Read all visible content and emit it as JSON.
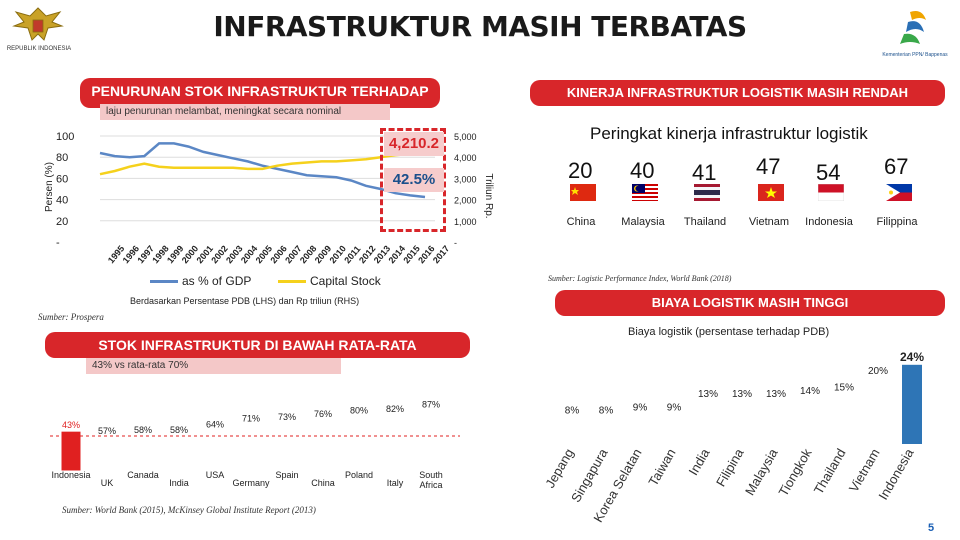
{
  "header": {
    "title": "INFRASTRUKTUR MASIH TERBATAS",
    "left_logo_caption": "REPUBLIK INDONESIA",
    "right_logo_caption": "Kementerian PPN/ Bappenas"
  },
  "left_top": {
    "banner": "PENURUNAN STOK INFRASTRUKTUR TERHADAP PDB",
    "subtitle": "laju penurunan melambat, meningkat secara nominal",
    "callout_value": "4,210.2",
    "callout_pct": "42.5%",
    "lhs_axis_label": "Persen (%)",
    "rhs_axis_label": "Triliun Rp.",
    "lhs_ticks": [
      "100",
      "80",
      "60",
      "40",
      "20",
      "-"
    ],
    "rhs_ticks": [
      "5,000",
      "4,000",
      "3,000",
      "2,000",
      "1,000",
      "-"
    ],
    "legend_gdp": "as % of GDP",
    "legend_capital": "Capital Stock",
    "caption": "Berdasarkan Persentase PDB (LHS) dan Rp triliun (RHS)",
    "source": "Sumber: Prospera"
  },
  "left_bottom": {
    "banner": "STOK INFRASTRUKTUR DI BAWAH RATA-RATA INTERNASIONAL",
    "subtitle": "43% vs rata-rata 70%",
    "source": "Sumber: World Bank (2015), McKinsey Global Institute Report (2013)"
  },
  "right_top": {
    "banner": "KINERJA INFRASTRUKTUR LOGISTIK MASIH RENDAH",
    "chart_title": "Peringkat kinerja infrastruktur logistik",
    "source": "Sumber: Logistic Performance Index, World Bank (2018)"
  },
  "right_bottom": {
    "banner": "BIAYA LOGISTIK MASIH TINGGI",
    "chart_title": "Biaya logistik (persentase terhadap PDB)"
  },
  "page_number": "5",
  "colors": {
    "accent_red": "#d8262a",
    "line_blue": "#5b87c5",
    "line_yellow": "#f5d11c",
    "bar_blue": "#2e75b6",
    "bar_red": "#e02020",
    "bar_gold": "#e8b92f"
  },
  "chart_data": [
    {
      "type": "line",
      "title": "PENURUNAN STOK INFRASTRUKTUR TERHADAP PDB",
      "x": [
        "1995",
        "1996",
        "1997",
        "1998",
        "1999",
        "2000",
        "2001",
        "2002",
        "2003",
        "2004",
        "2005",
        "2006",
        "2007",
        "2008",
        "2009",
        "2010",
        "2011",
        "2012",
        "2013",
        "2014",
        "2015",
        "2016",
        "2017"
      ],
      "series": [
        {
          "name": "as % of GDP",
          "axis": "lhs",
          "values": [
            84,
            81,
            80,
            81,
            93,
            93,
            90,
            85,
            82,
            79,
            76,
            72,
            69,
            66,
            63,
            62,
            61,
            58,
            53,
            50,
            46,
            44,
            42.5
          ]
        },
        {
          "name": "Capital Stock",
          "axis": "rhs",
          "values": [
            3200,
            3350,
            3550,
            3700,
            3550,
            3500,
            3500,
            3500,
            3500,
            3500,
            3450,
            3450,
            3600,
            3700,
            3750,
            3800,
            3800,
            3850,
            3900,
            4000,
            4100,
            4150,
            4210.2
          ]
        }
      ],
      "ylim_lhs": [
        0,
        100
      ],
      "ylim_rhs": [
        0,
        5000
      ],
      "ylabel_lhs": "Persen (%)",
      "ylabel_rhs": "Triliun Rp."
    },
    {
      "type": "table",
      "title": "Peringkat kinerja infrastruktur logistik",
      "categories": [
        "China",
        "Malaysia",
        "Thailand",
        "Vietnam",
        "Indonesia",
        "Filippina"
      ],
      "values": [
        "20",
        "40",
        "41",
        "47",
        "54",
        "67"
      ]
    },
    {
      "type": "bar",
      "title": "STOK INFRASTRUKTUR DI BAWAH RATA-RATA INTERNASIONAL",
      "categories": [
        "Indonesia",
        "UK",
        "Canada",
        "India",
        "USA",
        "Germany",
        "Spain",
        "China",
        "Poland",
        "Italy",
        "South Africa"
      ],
      "values": [
        43,
        57,
        58,
        58,
        64,
        71,
        73,
        76,
        80,
        82,
        87
      ],
      "labels": [
        "43%",
        "57%",
        "58%",
        "58%",
        "64%",
        "71%",
        "73%",
        "76%",
        "80%",
        "82%",
        "87%"
      ]
    },
    {
      "type": "bar",
      "title": "Biaya logistik (persentase terhadap PDB)",
      "categories": [
        "Jepang",
        "Singapura",
        "Korea Selatan",
        "Taiwan",
        "India",
        "Filipina",
        "Malaysia",
        "Tiongkok",
        "Thailand",
        "Vietnam",
        "Indonesia"
      ],
      "values": [
        8,
        8,
        9,
        9,
        13,
        13,
        13,
        14,
        15,
        20,
        24
      ],
      "labels": [
        "8%",
        "8%",
        "9%",
        "9%",
        "13%",
        "13%",
        "13%",
        "14%",
        "15%",
        "20%",
        "24%"
      ]
    }
  ]
}
